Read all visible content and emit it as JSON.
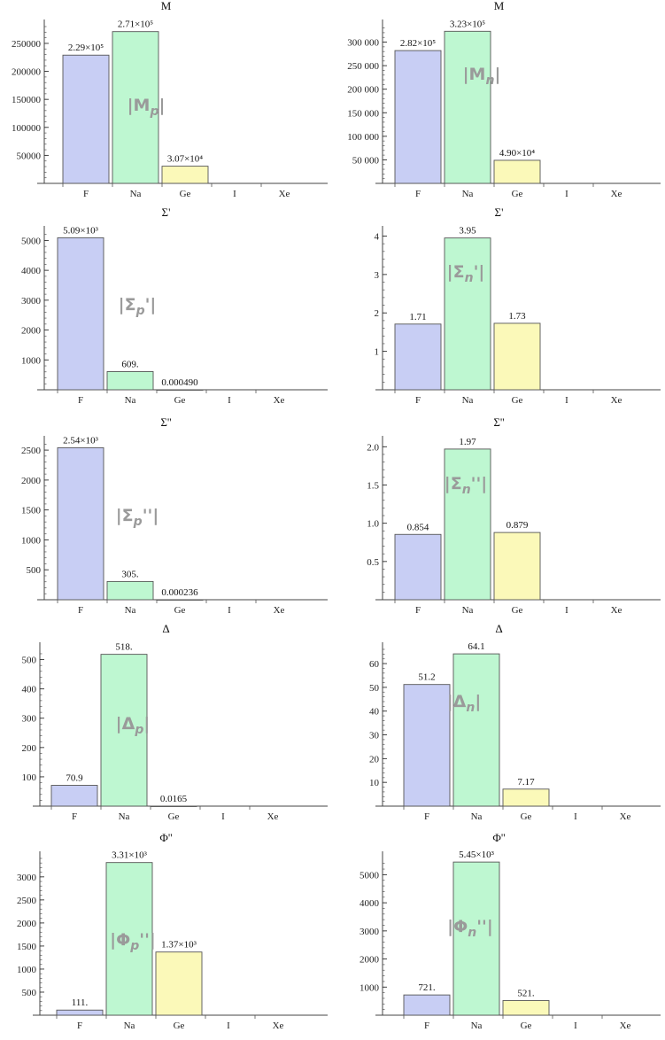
{
  "colors": {
    "F": "#c8cef4",
    "Na": "#bef7d1",
    "Ge": "#fbf9b9",
    "I": "#f4c8cf",
    "Xe": "#d7c8f4"
  },
  "chart_data": [
    {
      "type": "bar",
      "title": "M",
      "categories": [
        "F",
        "Na",
        "Ge",
        "I",
        "Xe"
      ],
      "values": [
        229000,
        271000,
        30700,
        0,
        0
      ],
      "data_labels": [
        "2.29×10⁵",
        "2.71×10⁵",
        "3.07×10⁴",
        "",
        ""
      ],
      "yticks": [
        50000,
        100000,
        150000,
        200000,
        250000
      ],
      "ytick_labels": [
        "50000",
        "100000",
        "150000",
        "200000",
        "250000"
      ],
      "ylim": [
        0,
        280000
      ],
      "annotation": "|Mp|"
    },
    {
      "type": "bar",
      "title": "M",
      "categories": [
        "F",
        "Na",
        "Ge",
        "I",
        "Xe"
      ],
      "values": [
        282000,
        323000,
        49000,
        0,
        0
      ],
      "data_labels": [
        "2.82×10⁵",
        "3.23×10⁵",
        "4.90×10⁴",
        "",
        ""
      ],
      "yticks": [
        50000,
        100000,
        150000,
        200000,
        250000,
        300000
      ],
      "ytick_labels": [
        "50 000",
        "100 000",
        "150 000",
        "200 000",
        "250 000",
        "300 000"
      ],
      "ylim": [
        0,
        333000
      ],
      "annotation": "|Mn|"
    },
    {
      "type": "bar",
      "title": "Σ'",
      "categories": [
        "F",
        "Na",
        "Ge",
        "I",
        "Xe"
      ],
      "values": [
        5090,
        609,
        0.00049,
        0,
        0
      ],
      "data_labels": [
        "5.09×10³",
        "609.",
        "0.000490",
        "",
        ""
      ],
      "yticks": [
        1000,
        2000,
        3000,
        4000,
        5000
      ],
      "ytick_labels": [
        "1000",
        "2000",
        "3000",
        "4000",
        "5000"
      ],
      "ylim": [
        0,
        5250
      ],
      "annotation": "|Σp'|"
    },
    {
      "type": "bar",
      "title": "Σ'",
      "categories": [
        "F",
        "Na",
        "Ge",
        "I",
        "Xe"
      ],
      "values": [
        1.71,
        3.95,
        1.73,
        0,
        0
      ],
      "data_labels": [
        "1.71",
        "3.95",
        "1.73",
        "",
        ""
      ],
      "yticks": [
        1,
        2,
        3,
        4
      ],
      "ytick_labels": [
        "1",
        "2",
        "3",
        "4"
      ],
      "ylim": [
        0,
        4.08
      ],
      "annotation": "|Σn'|"
    },
    {
      "type": "bar",
      "title": "Σ''",
      "categories": [
        "F",
        "Na",
        "Ge",
        "I",
        "Xe"
      ],
      "values": [
        2540,
        305,
        0.000236,
        0,
        0
      ],
      "data_labels": [
        "2.54×10³",
        "305.",
        "0.000236",
        "",
        ""
      ],
      "yticks": [
        500,
        1000,
        1500,
        2000,
        2500
      ],
      "ytick_labels": [
        "500",
        "1000",
        "1500",
        "2000",
        "2500"
      ],
      "ylim": [
        0,
        2620
      ],
      "annotation": "|Σp''|"
    },
    {
      "type": "bar",
      "title": "Σ''",
      "categories": [
        "F",
        "Na",
        "Ge",
        "I",
        "Xe"
      ],
      "values": [
        0.854,
        1.97,
        0.879,
        0,
        0
      ],
      "data_labels": [
        "0.854",
        "1.97",
        "0.879",
        "",
        ""
      ],
      "yticks": [
        0.5,
        1.0,
        1.5,
        2.0
      ],
      "ytick_labels": [
        "0.5",
        "1.0",
        "1.5",
        "2.0"
      ],
      "ylim": [
        0,
        2.05
      ],
      "annotation": "|Σn''|"
    },
    {
      "type": "bar",
      "title": "Δ",
      "categories": [
        "F",
        "Na",
        "Ge",
        "I",
        "Xe"
      ],
      "values": [
        70.9,
        518,
        0.0165,
        0,
        0
      ],
      "data_labels": [
        "70.9",
        "518.",
        "0.0165",
        "",
        ""
      ],
      "yticks": [
        100,
        200,
        300,
        400,
        500
      ],
      "ytick_labels": [
        "100",
        "200",
        "300",
        "400",
        "500"
      ],
      "ylim": [
        0,
        535
      ],
      "annotation": "|Δp|"
    },
    {
      "type": "bar",
      "title": "Δ",
      "categories": [
        "F",
        "Na",
        "Ge",
        "I",
        "Xe"
      ],
      "values": [
        51.2,
        64.1,
        7.17,
        0,
        0
      ],
      "data_labels": [
        "51.2",
        "64.1",
        "7.17",
        "",
        ""
      ],
      "yticks": [
        10,
        20,
        30,
        40,
        50,
        60
      ],
      "ytick_labels": [
        "10",
        "20",
        "30",
        "40",
        "50",
        "60"
      ],
      "ylim": [
        0,
        66
      ],
      "annotation": "|Δn|"
    },
    {
      "type": "bar",
      "title": "Φ''",
      "categories": [
        "F",
        "Na",
        "Ge",
        "I",
        "Xe"
      ],
      "values": [
        111,
        3310,
        1370,
        0,
        0
      ],
      "data_labels": [
        "111.",
        "3.31×10³",
        "1.37×10³",
        "",
        ""
      ],
      "yticks": [
        500,
        1000,
        1500,
        2000,
        2500,
        3000
      ],
      "ytick_labels": [
        "500",
        "1000",
        "1500",
        "2000",
        "2500",
        "3000"
      ],
      "ylim": [
        0,
        3400
      ],
      "annotation": "|Φp''|"
    },
    {
      "type": "bar",
      "title": "Φ''",
      "categories": [
        "F",
        "Na",
        "Ge",
        "I",
        "Xe"
      ],
      "values": [
        721,
        5450,
        521,
        0,
        0
      ],
      "data_labels": [
        "721.",
        "5.45×10³",
        "521.",
        "",
        ""
      ],
      "yticks": [
        1000,
        2000,
        3000,
        4000,
        5000
      ],
      "ytick_labels": [
        "1000",
        "2000",
        "3000",
        "4000",
        "5000"
      ],
      "ylim": [
        0,
        5580
      ],
      "annotation": "|Φn''|"
    }
  ]
}
